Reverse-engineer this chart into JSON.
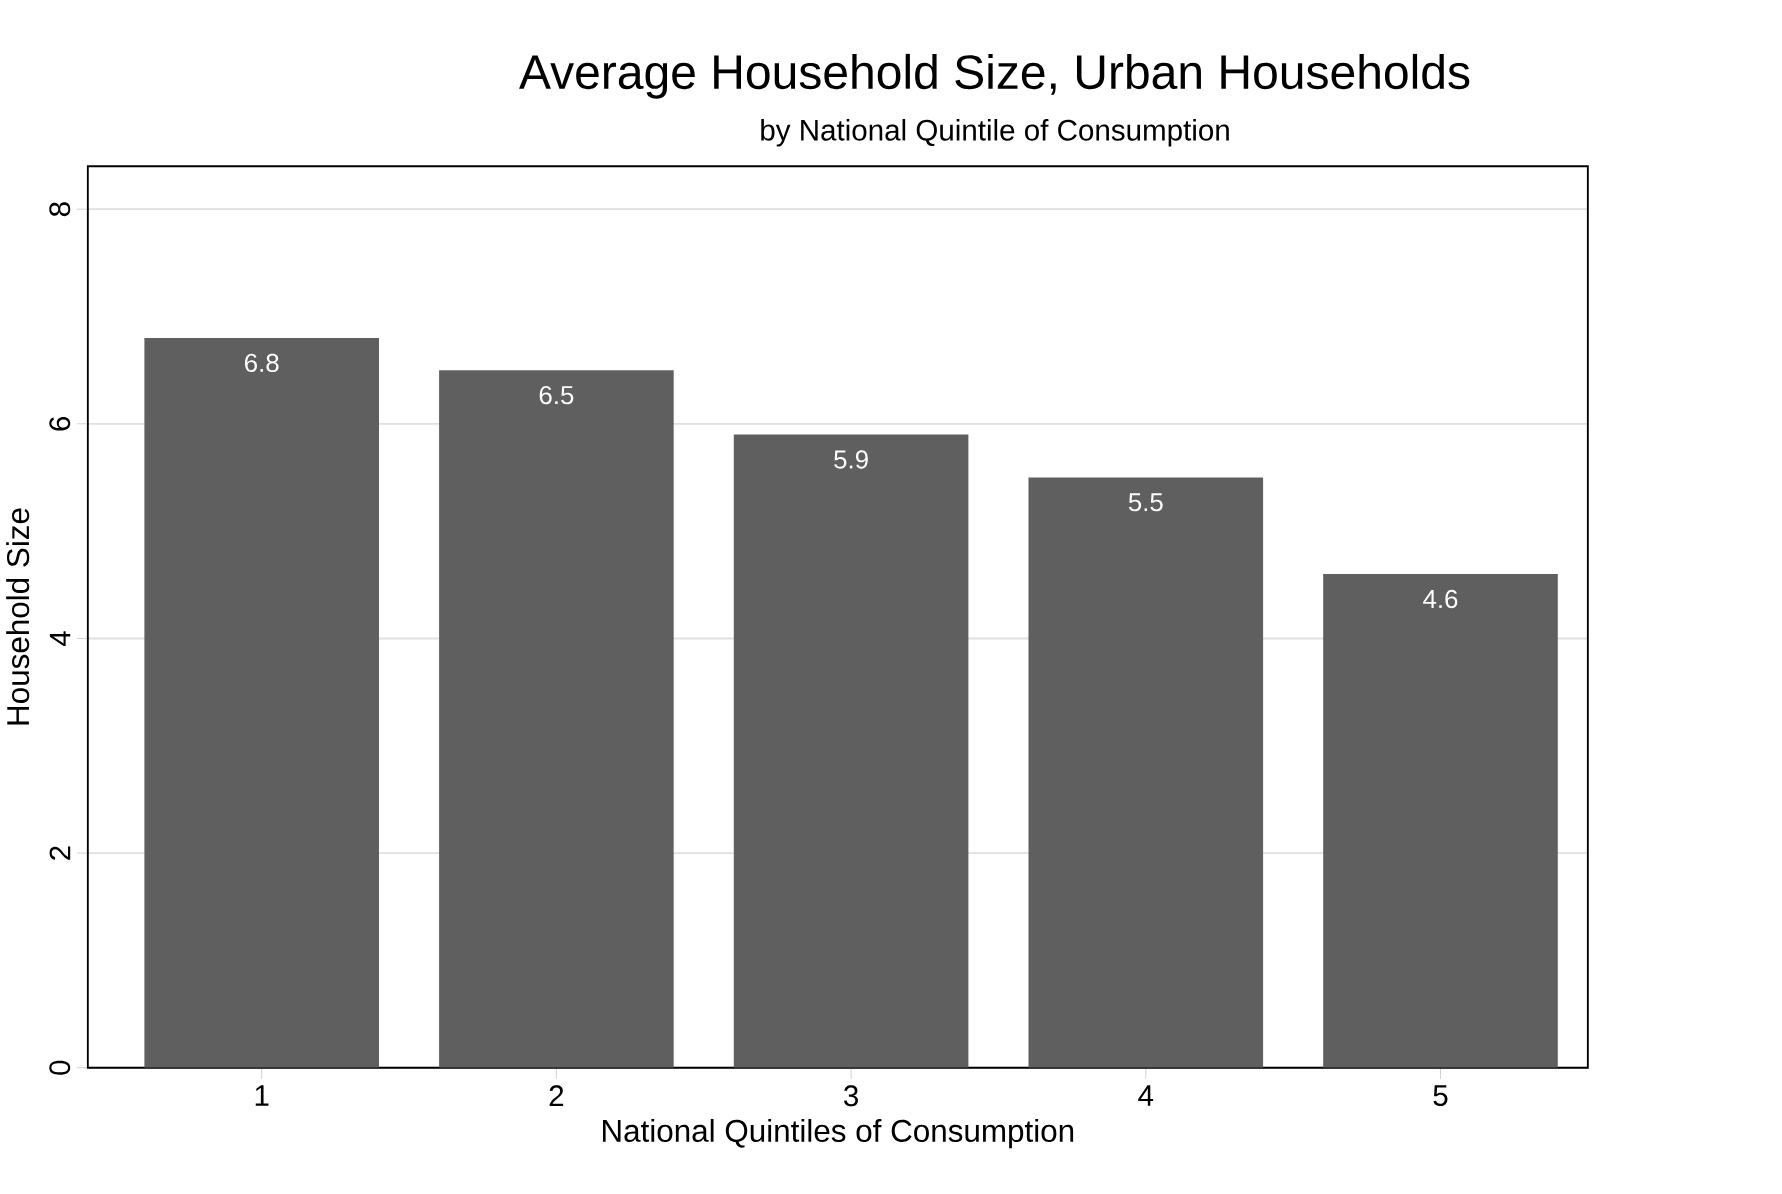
{
  "chart_data": {
    "type": "bar",
    "title": "Average Household Size, Urban Households",
    "subtitle": "by National Quintile of Consumption",
    "xlabel": "National Quintiles of Consumption",
    "ylabel": "Household Size",
    "categories": [
      "1",
      "2",
      "3",
      "4",
      "5"
    ],
    "values": [
      6.8,
      6.5,
      5.9,
      5.5,
      4.6
    ],
    "color": "#5f5f5f",
    "ylim": [
      0,
      8.4
    ],
    "yticks": [
      0,
      2,
      4,
      6,
      8
    ],
    "grid": "y",
    "data_labels": true
  }
}
